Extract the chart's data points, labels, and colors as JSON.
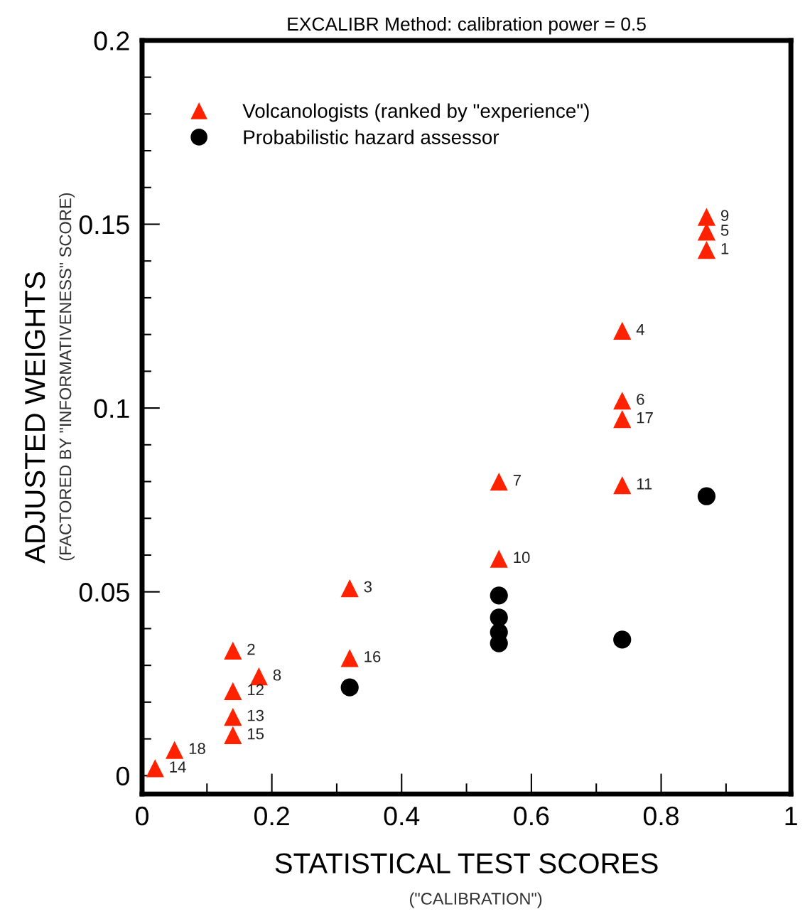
{
  "chart_data": {
    "type": "scatter",
    "title": "EXCALIBR Method: calibration power = 0.5",
    "xlabel": "STATISTICAL TEST SCORES",
    "ylabel": "ADJUSTED WEIGHTS",
    "xlim": [
      0,
      1
    ],
    "ylim": [
      -0.005,
      0.2
    ],
    "xticks": [
      0,
      {
        "value": 0.1,
        "label": null
      },
      0.2,
      {
        "value": 0.3,
        "label": null
      },
      0.4,
      {
        "value": 0.5,
        "label": null
      },
      0.6,
      {
        "value": 0.7,
        "label": null
      },
      0.8,
      {
        "value": 0.9,
        "label": null
      },
      1
    ],
    "yticks": [
      0,
      {
        "value": 0.01,
        "label": null
      },
      {
        "value": 0.02,
        "label": null
      },
      {
        "value": 0.03,
        "label": null
      },
      {
        "value": 0.04,
        "label": null
      },
      0.05,
      {
        "value": 0.06,
        "label": null
      },
      {
        "value": 0.07,
        "label": null
      },
      {
        "value": 0.08,
        "label": null
      },
      {
        "value": 0.09,
        "label": null
      },
      0.1,
      {
        "value": 0.11,
        "label": null
      },
      {
        "value": 0.12,
        "label": null
      },
      {
        "value": 0.13,
        "label": null
      },
      {
        "value": 0.14,
        "label": null
      },
      0.15,
      {
        "value": 0.16,
        "label": null
      },
      {
        "value": 0.17,
        "label": null
      },
      {
        "value": 0.18,
        "label": null
      },
      {
        "value": 0.19,
        "label": null
      },
      0.2
    ],
    "grid": false,
    "legend": "top left",
    "series": [
      {
        "name": "Volcanologists (ranked by \"experience\")",
        "color": "#ff2200",
        "marker": "triangle",
        "x": [
          0.87,
          0.14,
          0.32,
          0.74,
          0.87,
          0.74,
          0.55,
          0.18,
          0.87,
          0.55,
          0.74,
          0.14,
          0.14,
          0.02,
          0.14,
          0.32,
          0.74,
          0.05
        ],
        "values": [
          0.143,
          0.034,
          0.051,
          0.121,
          0.148,
          0.102,
          0.08,
          0.027,
          0.152,
          0.059,
          0.079,
          0.023,
          0.016,
          0.002,
          0.011,
          0.032,
          0.097,
          0.007
        ]
      },
      {
        "name": "Probabilistic hazard assessor",
        "color": "#000000",
        "marker": "circle",
        "x": [
          0.32,
          0.55,
          0.55,
          0.55,
          0.55,
          0.74,
          0.87
        ],
        "values": [
          0.024,
          0.049,
          0.043,
          0.039,
          0.036,
          0.037,
          0.076
        ]
      }
    ],
    "annotations": [
      "(\"CALIBRATION\")",
      "(FACTORED BY \"INFORMATIVENESS\" SCORE)",
      {
        "text": "1",
        "x": 0.87,
        "y": 0.143
      },
      {
        "text": "2",
        "x": 0.14,
        "y": 0.034
      },
      {
        "text": "3",
        "x": 0.32,
        "y": 0.051
      },
      {
        "text": "4",
        "x": 0.74,
        "y": 0.121
      },
      {
        "text": "5",
        "x": 0.87,
        "y": 0.148
      },
      {
        "text": "6",
        "x": 0.74,
        "y": 0.102
      },
      {
        "text": "7",
        "x": 0.55,
        "y": 0.08
      },
      {
        "text": "8",
        "x": 0.18,
        "y": 0.027
      },
      {
        "text": "9",
        "x": 0.87,
        "y": 0.152
      },
      {
        "text": "10",
        "x": 0.55,
        "y": 0.059
      },
      {
        "text": "11",
        "x": 0.74,
        "y": 0.079
      },
      {
        "text": "12",
        "x": 0.14,
        "y": 0.023
      },
      {
        "text": "13",
        "x": 0.14,
        "y": 0.016
      },
      {
        "text": "14",
        "x": 0.02,
        "y": 0.002
      },
      {
        "text": "15",
        "x": 0.14,
        "y": 0.011
      },
      {
        "text": "16",
        "x": 0.32,
        "y": 0.032
      },
      {
        "text": "17",
        "x": 0.74,
        "y": 0.097
      },
      {
        "text": "18",
        "x": 0.05,
        "y": 0.007
      }
    ]
  }
}
